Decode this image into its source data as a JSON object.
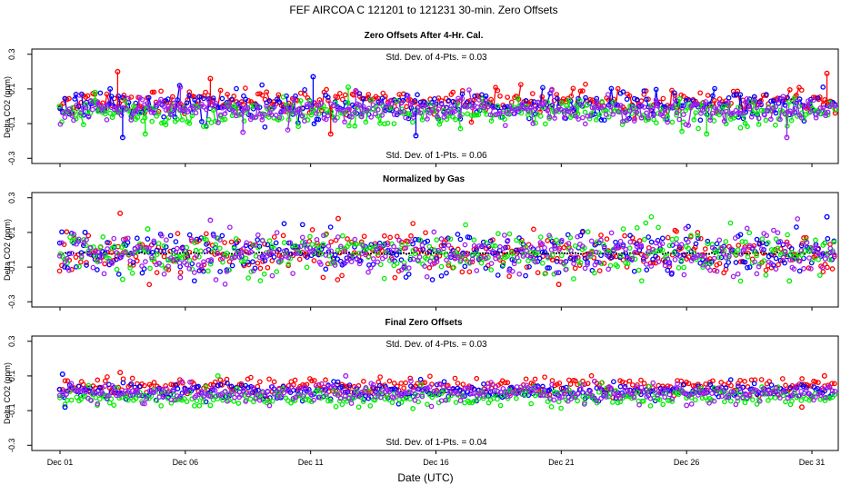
{
  "figure": {
    "title": "FEF   AIRCOA C   121201 to 121231   30-min. Zero Offsets",
    "xlabel": "Date (UTC)"
  },
  "colors": {
    "series_red": "#ff0000",
    "series_blue": "#0000ff",
    "series_green": "#00ee00",
    "series_purple": "#a020f0",
    "normalized_mean": "#000000"
  },
  "chart_data": [
    {
      "type": "scatter",
      "title": "Zero Offsets After 4-Hr. Cal.",
      "ylabel": "Delta CO2 (ppm)",
      "ylim": [
        -0.33,
        0.33
      ],
      "yticks": [
        0.3,
        0.1,
        -0.1,
        -0.3
      ],
      "ytick_labels": [
        "0.3",
        "0.1",
        "-0.1",
        "-0.3"
      ],
      "xlim": [
        0.7,
        32.0
      ],
      "xticks": [
        1,
        6,
        11,
        16,
        21,
        26,
        31
      ],
      "xtick_labels": [
        "Dec 01",
        "Dec 06",
        "Dec 11",
        "Dec 16",
        "Dec 21",
        "Dec 26",
        "Dec 31"
      ],
      "annotations": {
        "top": "Std. Dev. of 4-Pts. =  0.03",
        "bottom": "Std. Dev. of 1-Pts. =  0.06"
      },
      "series": [
        {
          "color": "red",
          "center": 0.03,
          "spread": 0.035
        },
        {
          "color": "blue",
          "center": 0.0,
          "spread": 0.04
        },
        {
          "color": "green",
          "center": -0.04,
          "spread": 0.04
        },
        {
          "color": "purple",
          "center": -0.02,
          "spread": 0.035
        }
      ],
      "spikes": [
        [
          3.3,
          0.2
        ],
        [
          3.0,
          0.1
        ],
        [
          2.4,
          0.08
        ],
        [
          5.8,
          0.11
        ],
        [
          7.0,
          0.16
        ],
        [
          11.1,
          0.17
        ],
        [
          12.5,
          0.11
        ],
        [
          12.8,
          0.09
        ],
        [
          31.6,
          0.19
        ],
        [
          3.5,
          -0.18
        ],
        [
          4.4,
          -0.16
        ],
        [
          8.3,
          -0.15
        ],
        [
          11.8,
          -0.16
        ],
        [
          15.2,
          -0.17
        ],
        [
          26.8,
          -0.16
        ],
        [
          30.0,
          -0.18
        ]
      ]
    },
    {
      "type": "scatter",
      "title": "Normalized by Gas",
      "ylabel": "Delta CO2 (ppm)",
      "ylim": [
        -0.33,
        0.33
      ],
      "yticks": [
        0.3,
        0.1,
        -0.1,
        -0.3
      ],
      "ytick_labels": [
        "0.3",
        "0.1",
        "-0.1",
        "-0.3"
      ],
      "xlim": [
        0.7,
        32.0
      ],
      "xticks": [
        1,
        6,
        11,
        16,
        21,
        26,
        31
      ],
      "xtick_labels": [
        "Dec 01",
        "Dec 06",
        "Dec 11",
        "Dec 16",
        "Dec 21",
        "Dec 26",
        "Dec 31"
      ],
      "annotations": {
        "top": "",
        "bottom": ""
      },
      "series": [
        {
          "color": "red",
          "center": -0.02,
          "spread": 0.06
        },
        {
          "color": "blue",
          "center": -0.02,
          "spread": 0.06
        },
        {
          "color": "green",
          "center": -0.02,
          "spread": 0.06
        },
        {
          "color": "purple",
          "center": -0.02,
          "spread": 0.06
        }
      ],
      "mean_line": -0.02,
      "spikes": [
        [
          3.4,
          0.21
        ],
        [
          2.0,
          0.1
        ],
        [
          4.5,
          0.12
        ],
        [
          7.0,
          0.17
        ],
        [
          12.1,
          0.18
        ],
        [
          31.6,
          0.19
        ],
        [
          3.5,
          -0.17
        ],
        [
          5.8,
          -0.16
        ],
        [
          20.9,
          -0.2
        ],
        [
          25.4,
          -0.14
        ],
        [
          30.1,
          -0.18
        ]
      ]
    },
    {
      "type": "scatter",
      "title": "Final Zero Offsets",
      "ylabel": "Delta CO2 (ppm)",
      "ylim": [
        -0.33,
        0.33
      ],
      "yticks": [
        0.3,
        0.1,
        -0.1,
        -0.3
      ],
      "ytick_labels": [
        "0.3",
        "0.1",
        "-0.1",
        "-0.3"
      ],
      "xlim": [
        0.7,
        32.0
      ],
      "xticks": [
        1,
        6,
        11,
        16,
        21,
        26,
        31
      ],
      "xtick_labels": [
        "Dec 01",
        "Dec 06",
        "Dec 11",
        "Dec 16",
        "Dec 21",
        "Dec 26",
        "Dec 31"
      ],
      "annotations": {
        "top": "Std. Dev. of 4-Pts. =  0.03",
        "bottom": "Std. Dev. of 1-Pts. =  0.04"
      },
      "series": [
        {
          "color": "red",
          "center": 0.04,
          "spread": 0.025
        },
        {
          "color": "blue",
          "center": 0.01,
          "spread": 0.025
        },
        {
          "color": "green",
          "center": -0.02,
          "spread": 0.025
        },
        {
          "color": "purple",
          "center": 0.0,
          "spread": 0.025
        }
      ],
      "spikes": [
        [
          3.4,
          0.12
        ],
        [
          1.1,
          0.11
        ],
        [
          7.3,
          0.1
        ],
        [
          12.4,
          0.1
        ],
        [
          31.5,
          0.1
        ],
        [
          1.2,
          -0.08
        ],
        [
          7.0,
          -0.07
        ],
        [
          26.0,
          -0.07
        ],
        [
          30.6,
          -0.08
        ]
      ]
    }
  ]
}
